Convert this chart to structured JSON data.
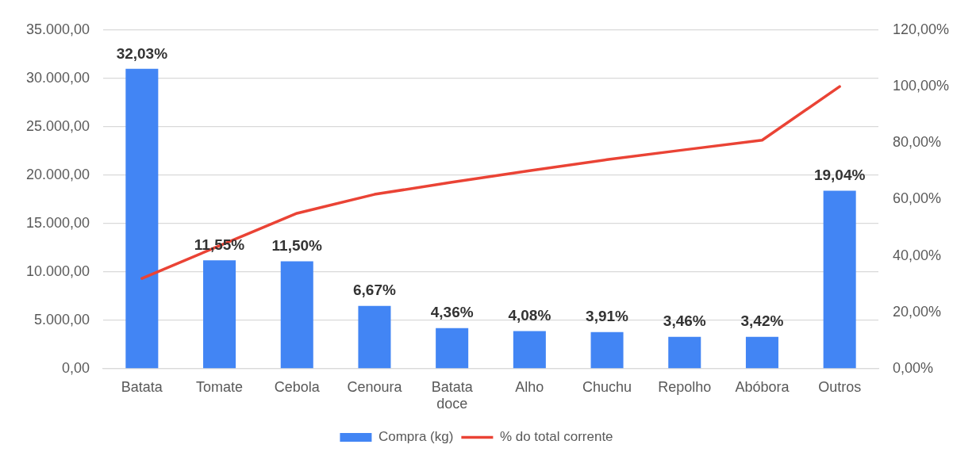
{
  "chart_data": {
    "type": "bar",
    "categories": [
      "Batata",
      "Tomate",
      "Cebola",
      "Cenoura",
      "Batata doce",
      "Alho",
      "Chuchu",
      "Repolho",
      "Abóbora",
      "Outros"
    ],
    "series": [
      {
        "name": "Compra (kg)",
        "color": "#4285f4",
        "values": [
          31000,
          11200,
          11100,
          6500,
          4200,
          3900,
          3800,
          3300,
          3300,
          18400
        ]
      },
      {
        "name": "% do total corrente",
        "type": "line",
        "axis": "y2",
        "color": "#ea4335",
        "values": [
          32,
          43.6,
          55.1,
          61.8,
          66.1,
          70.2,
          74.1,
          77.6,
          81,
          100
        ]
      }
    ],
    "annotations": [
      {
        "text": "32,03%",
        "x": "Batata",
        "y": 31000
      },
      {
        "text": "11,55%",
        "x": "Tomate",
        "y": 11200
      },
      {
        "text": "11,50%",
        "x": "Cebola",
        "y": 11100
      },
      {
        "text": "6,67%",
        "x": "Cenoura",
        "y": 6500
      },
      {
        "text": "4,36%",
        "x": "Batata doce",
        "y": 4200
      },
      {
        "text": "4,08%",
        "x": "Alho",
        "y": 3900
      },
      {
        "text": "3,91%",
        "x": "Chuchu",
        "y": 3800
      },
      {
        "text": "3,46%",
        "x": "Repolho",
        "y": 3300
      },
      {
        "text": "3,42%",
        "x": "Abóbora",
        "y": 3300
      },
      {
        "text": "19,04%",
        "x": "Outros",
        "y": 18400
      }
    ],
    "ylim": [
      0,
      35000
    ],
    "yticks": [
      {
        "value": 0,
        "label": "0,00"
      },
      {
        "value": 5000,
        "label": "5.000,00"
      },
      {
        "value": 10000,
        "label": "10.000,00"
      },
      {
        "value": 15000,
        "label": "15.000,00"
      },
      {
        "value": 20000,
        "label": "20.000,00"
      },
      {
        "value": 25000,
        "label": "25.000,00"
      },
      {
        "value": 30000,
        "label": "30.000,00"
      },
      {
        "value": 35000,
        "label": "35.000,00"
      }
    ],
    "y2lim": [
      0,
      120
    ],
    "y2ticks": [
      {
        "value": 0,
        "label": "0,00%"
      },
      {
        "value": 20,
        "label": "20,00%"
      },
      {
        "value": 40,
        "label": "40,00%"
      },
      {
        "value": 60,
        "label": "60,00%"
      },
      {
        "value": 80,
        "label": "80,00%"
      },
      {
        "value": 100,
        "label": "100,00%"
      },
      {
        "value": 120,
        "label": "120,00%"
      }
    ],
    "grid": "y",
    "legend": "bottom",
    "marker": "none",
    "line_style": "solid"
  }
}
